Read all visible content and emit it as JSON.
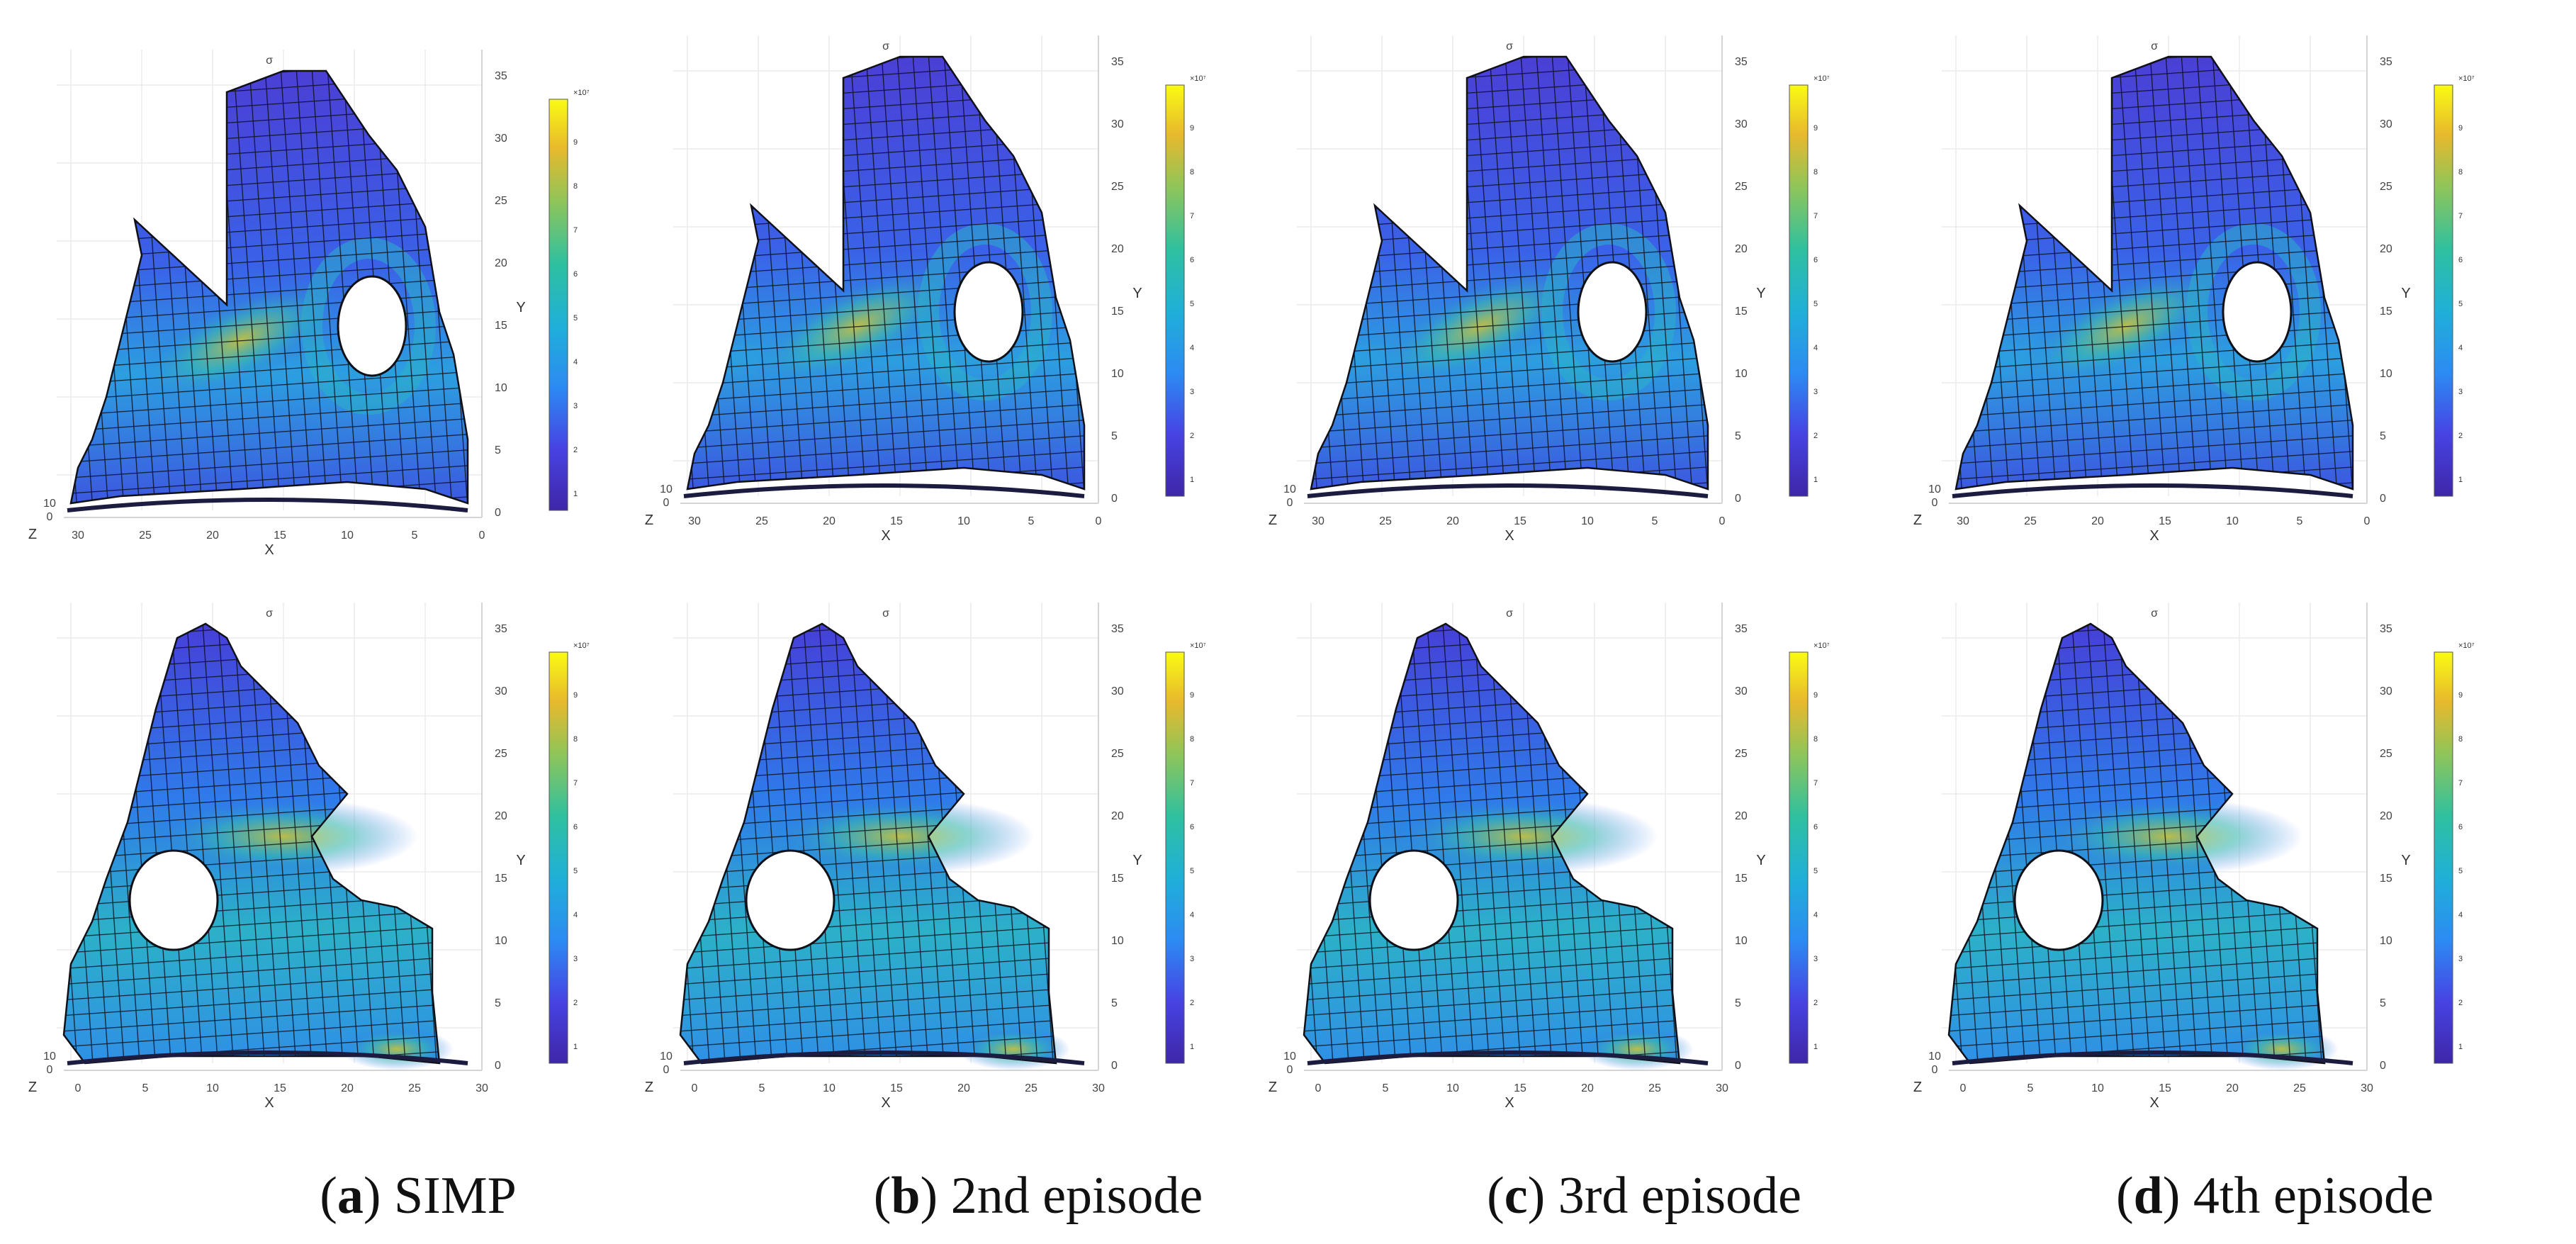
{
  "axes": {
    "x_label": "X",
    "y_label": "Y",
    "z_label": "Z",
    "x_ticks_top": [
      "30",
      "25",
      "20",
      "15",
      "10",
      "5",
      "0"
    ],
    "x_ticks_bottom": [
      "0",
      "5",
      "10",
      "15",
      "20",
      "25",
      "30"
    ],
    "y_ticks": [
      "0",
      "5",
      "10",
      "15",
      "20",
      "25",
      "30",
      "35"
    ],
    "z_ticks": [
      "10",
      "0"
    ],
    "title_glyph": "σ",
    "colorbar_exp": "×10⁷",
    "colorbar_ticks": [
      "1",
      "2",
      "3",
      "4",
      "5",
      "6",
      "7",
      "8",
      "9"
    ]
  },
  "captions": [
    {
      "letter": "a",
      "text": " SIMP"
    },
    {
      "letter": "b",
      "text": " 2nd episode"
    },
    {
      "letter": "c",
      "text": " 3rd episode"
    },
    {
      "letter": "d",
      "text": " 4th episode"
    }
  ],
  "colors": {
    "low": "#3e26a8",
    "mid": "#2fb8b7",
    "high": "#f9fb14",
    "grid": "#101018"
  }
}
